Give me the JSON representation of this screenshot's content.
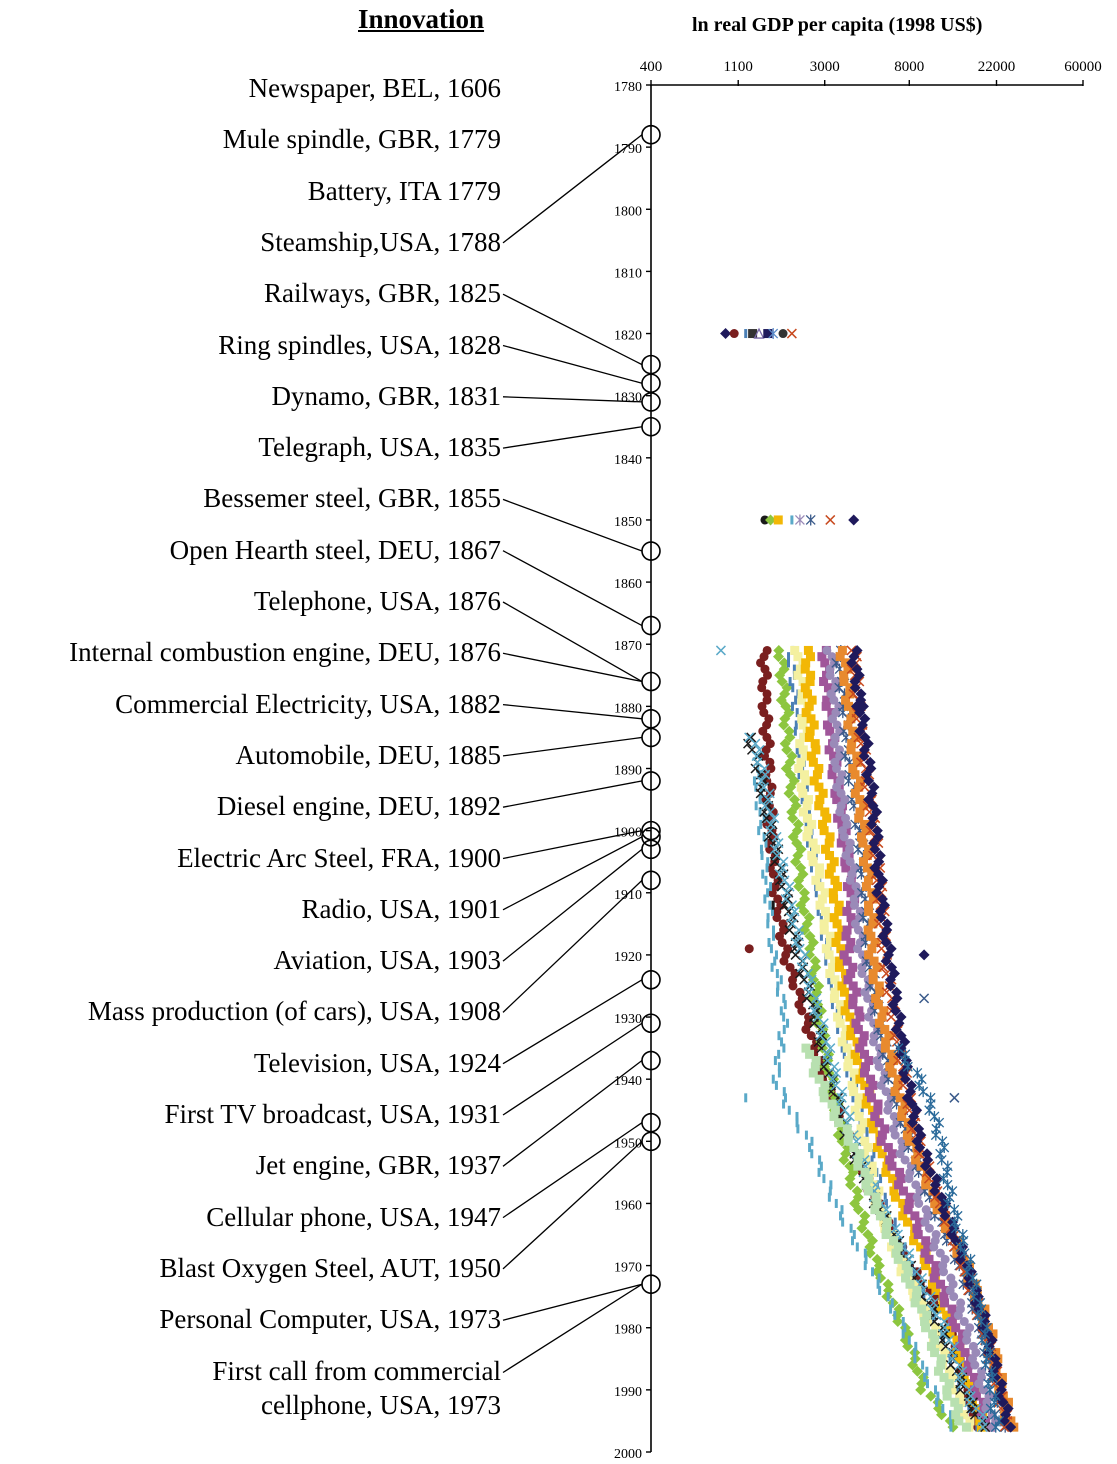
{
  "left_heading": "Innovation",
  "chart_data": {
    "type": "scatter",
    "title": "ln real GDP per capita (1998 US$)",
    "xlabel": "ln real GDP per capita (1998 US$)",
    "ylabel": "",
    "x_scale": "log",
    "x_ticks": [
      400,
      1100,
      3000,
      8000,
      22000,
      60000
    ],
    "y_ticks": [
      1780,
      1790,
      1800,
      1810,
      1820,
      1830,
      1840,
      1850,
      1860,
      1870,
      1880,
      1890,
      1900,
      1910,
      1920,
      1930,
      1940,
      1950,
      1960,
      1970,
      1980,
      1990,
      2000
    ],
    "xlim": [
      400,
      60000
    ],
    "ylim": [
      1780,
      2000
    ],
    "y_inverted": true,
    "grid": false,
    "legend": "none",
    "innovations": [
      {
        "label": "Newspaper, BEL, 1606",
        "year": 1606
      },
      {
        "label": "Mule spindle, GBR, 1779",
        "year": 1779
      },
      {
        "label": "Battery, ITA 1779",
        "year": 1779
      },
      {
        "label": "Steamship,USA, 1788",
        "year": 1788
      },
      {
        "label": "Railways, GBR, 1825",
        "year": 1825
      },
      {
        "label": "Ring spindles, USA, 1828",
        "year": 1828
      },
      {
        "label": "Dynamo, GBR, 1831",
        "year": 1831
      },
      {
        "label": "Telegraph, USA, 1835",
        "year": 1835
      },
      {
        "label": "Bessemer steel, GBR, 1855",
        "year": 1855
      },
      {
        "label": "Open Hearth steel, DEU, 1867",
        "year": 1867
      },
      {
        "label": "Telephone, USA, 1876",
        "year": 1876
      },
      {
        "label": "Internal combustion engine, DEU, 1876",
        "year": 1876
      },
      {
        "label": "Commercial Electricity, USA, 1882",
        "year": 1882
      },
      {
        "label": "Automobile, DEU, 1885",
        "year": 1885
      },
      {
        "label": "Diesel engine, DEU, 1892",
        "year": 1892
      },
      {
        "label": "Electric Arc Steel, FRA, 1900",
        "year": 1900
      },
      {
        "label": "Radio, USA, 1901",
        "year": 1901
      },
      {
        "label": "Aviation, USA, 1903",
        "year": 1903
      },
      {
        "label": "Mass production (of cars), USA, 1908",
        "year": 1908
      },
      {
        "label": "Television, USA, 1924",
        "year": 1924
      },
      {
        "label": "First TV broadcast, USA, 1931",
        "year": 1931
      },
      {
        "label": "Jet engine, GBR, 1937",
        "year": 1937
      },
      {
        "label": "Cellular phone, USA, 1947",
        "year": 1947
      },
      {
        "label": "Blast Oxygen Steel, AUT, 1950",
        "year": 1950
      },
      {
        "label": "Personal Computer, USA, 1973",
        "year": 1973
      },
      {
        "label": "First call from commercial cellphone, USA, 1973",
        "label_lines": [
          "First call from commercial",
          "cellphone, USA, 1973"
        ],
        "year": 1973
      }
    ],
    "country_points_1820": [
      {
        "gdp": 950,
        "color": "#1f1a5c",
        "marker": "diamond"
      },
      {
        "gdp": 1050,
        "color": "#7a1f1f",
        "marker": "circle"
      },
      {
        "gdp": 1200,
        "color": "#4a7fb5",
        "marker": "dash"
      },
      {
        "gdp": 1300,
        "color": "#333333",
        "marker": "square"
      },
      {
        "gdp": 1400,
        "color": "#7a6aa8",
        "marker": "triangle"
      },
      {
        "gdp": 1550,
        "color": "#1f1a5c",
        "marker": "square"
      },
      {
        "gdp": 1650,
        "color": "#5a8ac8",
        "marker": "star"
      },
      {
        "gdp": 1850,
        "color": "#333333",
        "marker": "circle"
      },
      {
        "gdp": 2050,
        "color": "#c84a1f",
        "marker": "x"
      }
    ],
    "country_points_1850": [
      {
        "gdp": 1500,
        "color": "#1a1a1a",
        "marker": "circle"
      },
      {
        "gdp": 1600,
        "color": "#8dc63f",
        "marker": "diamond"
      },
      {
        "gdp": 1750,
        "color": "#f2b705",
        "marker": "square"
      },
      {
        "gdp": 2050,
        "color": "#5aa9c8",
        "marker": "dash"
      },
      {
        "gdp": 2250,
        "color": "#9a8ab8",
        "marker": "star"
      },
      {
        "gdp": 2550,
        "color": "#3a5a8a",
        "marker": "star"
      },
      {
        "gdp": 3200,
        "color": "#c84a1f",
        "marker": "x"
      },
      {
        "gdp": 4200,
        "color": "#1f1a5c",
        "marker": "diamond"
      }
    ],
    "series": [
      {
        "color": "#7a1f1f",
        "marker": "circle",
        "x": [
          1480,
          1500,
          1560,
          1600,
          1700,
          1800,
          1900,
          2150,
          2400,
          3000,
          4000,
          5500,
          8000,
          10500,
          13000,
          15500,
          17500
        ],
        "y": [
          1871,
          1880,
          1890,
          1900,
          1910,
          1915,
          1920,
          1925,
          1930,
          1940,
          1950,
          1960,
          1970,
          1975,
          1980,
          1990,
          1996
        ]
      },
      {
        "color": "#8dc63f",
        "marker": "diamond",
        "x": [
          1800,
          1900,
          2000,
          2150,
          2300,
          2600,
          2800,
          3200,
          3700,
          4400,
          5500,
          7500,
          9500,
          11500,
          13000
        ],
        "y": [
          1871,
          1880,
          1890,
          1900,
          1910,
          1920,
          1930,
          1940,
          1950,
          1960,
          1970,
          1980,
          1990,
          1993,
          1996
        ]
      },
      {
        "color": "#5aa9c8",
        "marker": "dash",
        "x": [
          1350,
          1400,
          1450,
          1550,
          1650,
          1900,
          1700,
          2000,
          2500,
          3400,
          5000,
          7500,
          10500,
          13500
        ],
        "y": [
          1890,
          1895,
          1900,
          1910,
          1920,
          1930,
          1940,
          1945,
          1950,
          1960,
          1970,
          1980,
          1990,
          1996
        ]
      },
      {
        "color": "#4a7fb5",
        "marker": "dash",
        "x": [
          2000,
          2150,
          2300,
          2500,
          2800,
          3100,
          3500,
          4100,
          4900,
          6000,
          8000,
          11000,
          14000,
          17000
        ],
        "y": [
          1871,
          1880,
          1890,
          1900,
          1910,
          1920,
          1930,
          1940,
          1950,
          1960,
          1970,
          1980,
          1990,
          1996
        ]
      },
      {
        "color": "#f4f0a0",
        "marker": "square",
        "x": [
          2200,
          2400,
          2300,
          2500,
          2900,
          3200,
          3600,
          4200,
          4700,
          5600,
          7300,
          10500,
          13500,
          16000
        ],
        "y": [
          1871,
          1880,
          1890,
          1900,
          1910,
          1920,
          1930,
          1940,
          1950,
          1960,
          1970,
          1980,
          1990,
          1996
        ]
      },
      {
        "color": "#f2b705",
        "marker": "square",
        "x": [
          2450,
          2500,
          2700,
          3050,
          3400,
          3600,
          4000,
          4700,
          5600,
          7200,
          10000,
          13000,
          16500,
          19000
        ],
        "y": [
          1871,
          1880,
          1890,
          1900,
          1910,
          1920,
          1930,
          1940,
          1950,
          1960,
          1970,
          1980,
          1990,
          1996
        ]
      },
      {
        "color": "#a0569a",
        "marker": "square",
        "x": [
          3000,
          3150,
          3350,
          3700,
          4100,
          3900,
          4400,
          5000,
          6000,
          8000,
          10500,
          14000,
          17500,
          20000
        ],
        "y": [
          1871,
          1880,
          1890,
          1900,
          1910,
          1920,
          1930,
          1940,
          1950,
          1960,
          1970,
          1980,
          1990,
          1996
        ]
      },
      {
        "color": "#9a8ab8",
        "marker": "circle",
        "x": [
          3200,
          3400,
          3500,
          3800,
          4300,
          4600,
          5200,
          5900,
          7100,
          9200,
          12000,
          15500,
          19000,
          21500
        ],
        "y": [
          1871,
          1880,
          1890,
          1900,
          1910,
          1920,
          1930,
          1940,
          1950,
          1960,
          1970,
          1980,
          1990,
          1996
        ]
      },
      {
        "color": "#3a5a8a",
        "marker": "star",
        "x": [
          3500,
          3800,
          4000,
          4500,
          4800,
          5000,
          5600,
          6500,
          8000,
          10500,
          14500,
          18500,
          22000,
          24500
        ],
        "y": [
          1871,
          1880,
          1890,
          1900,
          1910,
          1920,
          1930,
          1940,
          1950,
          1960,
          1970,
          1980,
          1990,
          1996
        ]
      },
      {
        "color": "#e88a2e",
        "marker": "square",
        "x": [
          3700,
          4000,
          4300,
          4700,
          5100,
          5200,
          5800,
          6800,
          8200,
          11000,
          15500,
          20000,
          23500,
          26000
        ],
        "y": [
          1871,
          1880,
          1890,
          1900,
          1910,
          1920,
          1930,
          1940,
          1950,
          1960,
          1970,
          1980,
          1990,
          1996
        ]
      },
      {
        "color": "#c84a1f",
        "marker": "x",
        "x": [
          4200,
          4400,
          4800,
          5300,
          5700,
          6000,
          6700,
          7600,
          8800,
          11500,
          15000,
          19000,
          22500,
          25000
        ],
        "y": [
          1871,
          1880,
          1890,
          1900,
          1910,
          1920,
          1930,
          1940,
          1950,
          1960,
          1970,
          1980,
          1990,
          1996
        ]
      },
      {
        "color": "#1f1a5c",
        "marker": "diamond",
        "x": [
          4200,
          4500,
          5000,
          5400,
          5700,
          6300,
          7000,
          7800,
          9000,
          11800,
          15500,
          19500,
          23000,
          25500
        ],
        "y": [
          1871,
          1880,
          1890,
          1900,
          1910,
          1920,
          1930,
          1940,
          1950,
          1960,
          1970,
          1980,
          1990,
          1996
        ]
      },
      {
        "color": "#1a1a1a",
        "marker": "x",
        "x": [
          1250,
          1400,
          1600,
          1900,
          2200,
          2700,
          3200,
          4000,
          5500,
          8000,
          11500,
          15000,
          19000
        ],
        "y": [
          1885,
          1890,
          1900,
          1910,
          1920,
          1930,
          1940,
          1950,
          1960,
          1970,
          1980,
          1990,
          1996
        ]
      },
      {
        "color": "#5aa9c8",
        "marker": "x",
        "x": [
          1300,
          1450,
          1650,
          1950,
          2300,
          2800,
          3400,
          4200,
          5700,
          8300,
          12000,
          15500,
          19500
        ],
        "y": [
          1885,
          1890,
          1900,
          1910,
          1920,
          1930,
          1940,
          1950,
          1960,
          1970,
          1980,
          1990,
          1996
        ]
      },
      {
        "color": "#b8e0b0",
        "marker": "square",
        "x": [
          2500,
          2800,
          3300,
          4100,
          5400,
          7500,
          10000,
          12500,
          15000
        ],
        "y": [
          1935,
          1940,
          1945,
          1950,
          1960,
          1970,
          1980,
          1990,
          1996
        ]
      },
      {
        "color": "#2a6a9a",
        "marker": "star",
        "x": [
          7000,
          9000,
          10500,
          11500,
          13000,
          16000,
          19000,
          22000
        ],
        "y": [
          1935,
          1940,
          1945,
          1950,
          1960,
          1970,
          1980,
          1996
        ]
      }
    ],
    "outliers": [
      {
        "gdp": 900,
        "year": 1871,
        "color": "#5aa9c8",
        "marker": "x"
      },
      {
        "gdp": 4700,
        "year": 1880,
        "color": "#1f1a5c",
        "marker": "diamond"
      },
      {
        "gdp": 9500,
        "year": 1920,
        "color": "#1f1a5c",
        "marker": "diamond"
      },
      {
        "gdp": 1250,
        "year": 1919,
        "color": "#7a1f1f",
        "marker": "circle"
      },
      {
        "gdp": 1650,
        "year": 1912,
        "color": "#1a1a1a",
        "marker": "dash"
      },
      {
        "gdp": 1200,
        "year": 1943,
        "color": "#5aa9c8",
        "marker": "dash"
      },
      {
        "gdp": 13500,
        "year": 1943,
        "color": "#3a5a8a",
        "marker": "x"
      },
      {
        "gdp": 9500,
        "year": 1927,
        "color": "#3a5a8a",
        "marker": "x"
      }
    ]
  }
}
